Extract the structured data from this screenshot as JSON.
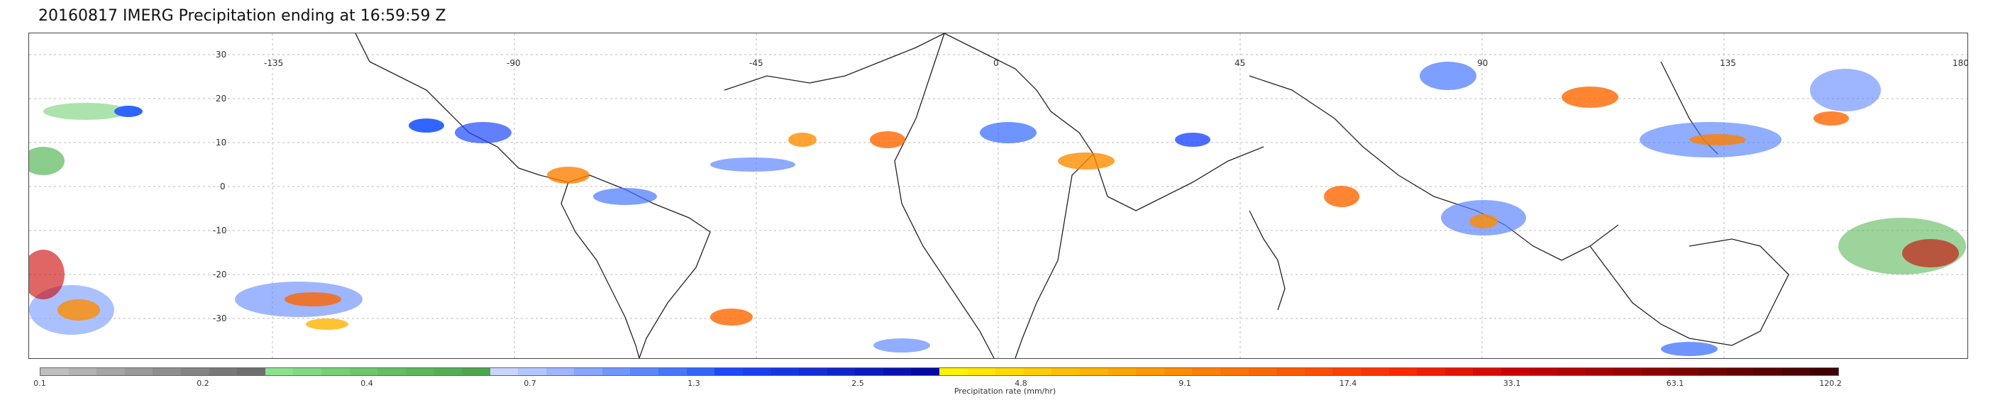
{
  "title": "20160817 IMERG Precipitation ending at 16:59:59 Z",
  "map": {
    "lat_labels": [
      "30",
      "20",
      "10",
      "0",
      "-10",
      "-20",
      "-30"
    ],
    "lon_labels": [
      "-135",
      "-90",
      "-45",
      "0",
      "45",
      "90",
      "135",
      "180"
    ]
  },
  "colorbar": {
    "ticks": [
      "0.1",
      "0.2",
      "0.4",
      "0.7",
      "1.3",
      "2.5",
      "4.8",
      "9.1",
      "17.4",
      "33.1",
      "63.1",
      "120.2"
    ],
    "caption": "Precipitation rate (mm/hr)",
    "colors": [
      "#bfbfbf",
      "#b3b3b3",
      "#a6a6a6",
      "#9a9a9a",
      "#8e8e8e",
      "#838383",
      "#787878",
      "#6f6f6f",
      "#8be28b",
      "#80da80",
      "#75d175",
      "#6bc96b",
      "#62c062",
      "#5ab85a",
      "#53af53",
      "#4ca64c",
      "#c9d4ff",
      "#b4c6ff",
      "#9eb6ff",
      "#88a6ff",
      "#7296ff",
      "#5c86ff",
      "#4676ff",
      "#3066ff",
      "#1f49ff",
      "#1a3ff2",
      "#1636e6",
      "#122dd9",
      "#0e24cc",
      "#0b1bbf",
      "#0812b3",
      "#050aa6",
      "#fff200",
      "#ffe600",
      "#ffd900",
      "#ffcc00",
      "#ffbf00",
      "#ffb300",
      "#ffa600",
      "#ff9900",
      "#ff8c00",
      "#ff8000",
      "#ff7300",
      "#ff6600",
      "#ff5900",
      "#ff4d00",
      "#ff4000",
      "#ff3300",
      "#ff2600",
      "#f21d00",
      "#e61400",
      "#d90b00",
      "#cc0000",
      "#bf0000",
      "#b30000",
      "#a60000",
      "#990000",
      "#8c0000",
      "#800000",
      "#730000",
      "#660000",
      "#590000",
      "#4d0000",
      "#400000"
    ]
  }
}
